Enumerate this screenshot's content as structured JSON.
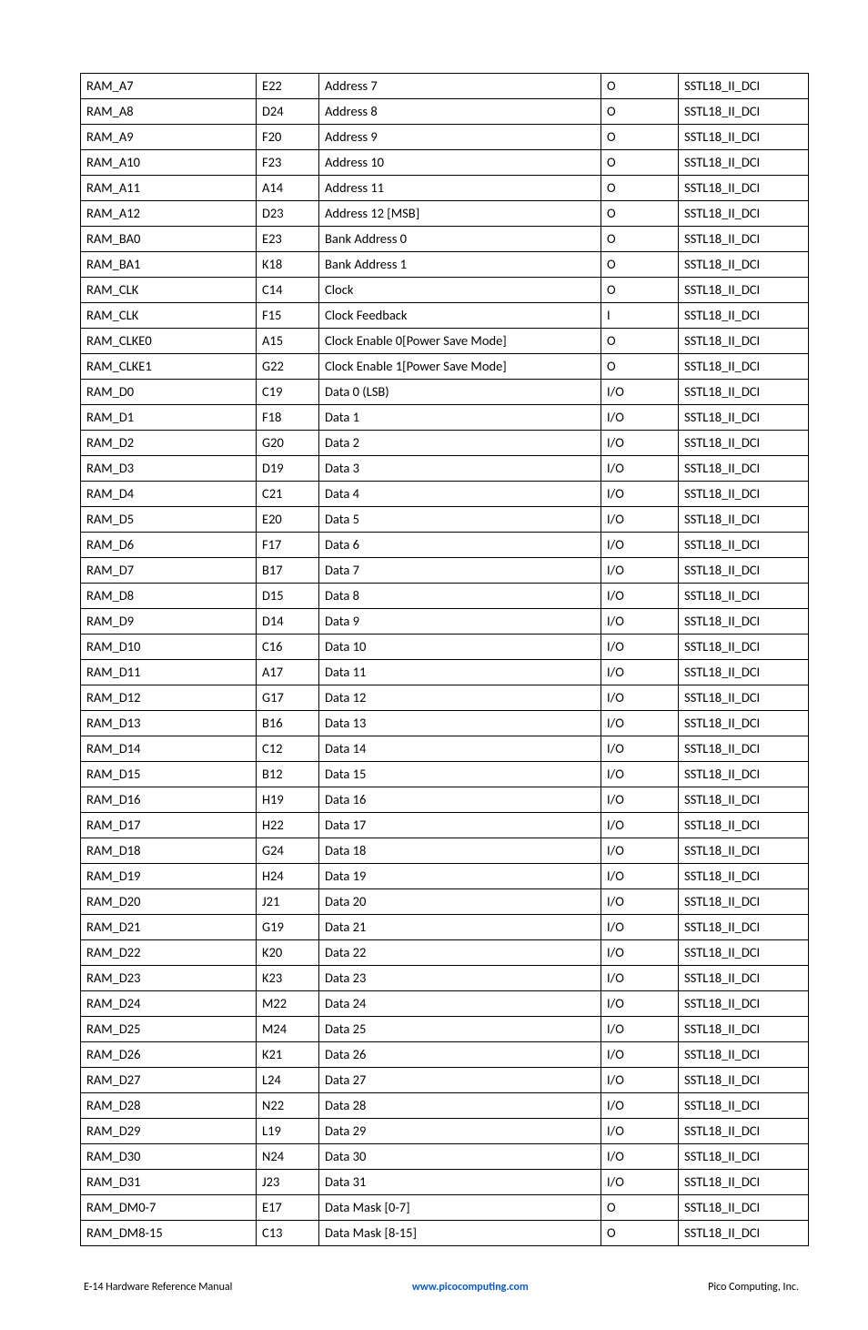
{
  "table": {
    "rows": [
      {
        "name": "RAM_A7",
        "pin": "E22",
        "desc": "Address 7",
        "dir": "O",
        "std": "SSTL18_II_DCI"
      },
      {
        "name": "RAM_A8",
        "pin": "D24",
        "desc": "Address 8",
        "dir": "O",
        "std": "SSTL18_II_DCI"
      },
      {
        "name": "RAM_A9",
        "pin": "F20",
        "desc": "Address 9",
        "dir": "O",
        "std": "SSTL18_II_DCI"
      },
      {
        "name": "RAM_A10",
        "pin": "F23",
        "desc": "Address 10",
        "dir": "O",
        "std": "SSTL18_II_DCI"
      },
      {
        "name": "RAM_A11",
        "pin": "A14",
        "desc": "Address 11",
        "dir": "O",
        "std": "SSTL18_II_DCI"
      },
      {
        "name": "RAM_A12",
        "pin": "D23",
        "desc": "Address 12 [MSB]",
        "dir": "O",
        "std": "SSTL18_II_DCI"
      },
      {
        "name": "RAM_BA0",
        "pin": "E23",
        "desc": "Bank Address 0",
        "dir": "O",
        "std": "SSTL18_II_DCI"
      },
      {
        "name": "RAM_BA1",
        "pin": "K18",
        "desc": "Bank Address 1",
        "dir": "O",
        "std": "SSTL18_II_DCI"
      },
      {
        "name": "RAM_CLK",
        "pin": "C14",
        "desc": "Clock",
        "dir": "O",
        "std": "SSTL18_II_DCI"
      },
      {
        "name": "RAM_CLK",
        "pin": "F15",
        "desc": "Clock Feedback",
        "dir": "I",
        "std": "SSTL18_II_DCI"
      },
      {
        "name": "RAM_CLKE0",
        "pin": "A15",
        "desc": "Clock Enable 0[Power Save Mode]",
        "dir": "O",
        "std": "SSTL18_II_DCI"
      },
      {
        "name": "RAM_CLKE1",
        "pin": "G22",
        "desc": "Clock Enable 1[Power Save Mode]",
        "dir": "O",
        "std": "SSTL18_II_DCI"
      },
      {
        "name": "RAM_D0",
        "pin": "C19",
        "desc": "Data 0 (LSB)",
        "dir": "I/O",
        "std": "SSTL18_II_DCI"
      },
      {
        "name": "RAM_D1",
        "pin": "F18",
        "desc": "Data 1",
        "dir": "I/O",
        "std": "SSTL18_II_DCI"
      },
      {
        "name": "RAM_D2",
        "pin": "G20",
        "desc": "Data 2",
        "dir": "I/O",
        "std": "SSTL18_II_DCI"
      },
      {
        "name": "RAM_D3",
        "pin": "D19",
        "desc": "Data 3",
        "dir": "I/O",
        "std": "SSTL18_II_DCI"
      },
      {
        "name": "RAM_D4",
        "pin": "C21",
        "desc": "Data 4",
        "dir": "I/O",
        "std": "SSTL18_II_DCI"
      },
      {
        "name": "RAM_D5",
        "pin": "E20",
        "desc": "Data 5",
        "dir": "I/O",
        "std": "SSTL18_II_DCI"
      },
      {
        "name": "RAM_D6",
        "pin": "F17",
        "desc": "Data 6",
        "dir": "I/O",
        "std": "SSTL18_II_DCI"
      },
      {
        "name": "RAM_D7",
        "pin": "B17",
        "desc": "Data 7",
        "dir": "I/O",
        "std": "SSTL18_II_DCI"
      },
      {
        "name": "RAM_D8",
        "pin": "D15",
        "desc": "Data 8",
        "dir": "I/O",
        "std": "SSTL18_II_DCI"
      },
      {
        "name": "RAM_D9",
        "pin": "D14",
        "desc": "Data 9",
        "dir": "I/O",
        "std": "SSTL18_II_DCI"
      },
      {
        "name": "RAM_D10",
        "pin": "C16",
        "desc": "Data 10",
        "dir": "I/O",
        "std": "SSTL18_II_DCI"
      },
      {
        "name": "RAM_D11",
        "pin": "A17",
        "desc": "Data 11",
        "dir": "I/O",
        "std": "SSTL18_II_DCI"
      },
      {
        "name": "RAM_D12",
        "pin": "G17",
        "desc": "Data 12",
        "dir": "I/O",
        "std": "SSTL18_II_DCI"
      },
      {
        "name": "RAM_D13",
        "pin": "B16",
        "desc": "Data 13",
        "dir": "I/O",
        "std": "SSTL18_II_DCI"
      },
      {
        "name": "RAM_D14",
        "pin": "C12",
        "desc": "Data 14",
        "dir": "I/O",
        "std": "SSTL18_II_DCI"
      },
      {
        "name": "RAM_D15",
        "pin": "B12",
        "desc": "Data 15",
        "dir": "I/O",
        "std": "SSTL18_II_DCI"
      },
      {
        "name": "RAM_D16",
        "pin": "H19",
        "desc": "Data 16",
        "dir": "I/O",
        "std": "SSTL18_II_DCI"
      },
      {
        "name": "RAM_D17",
        "pin": "H22",
        "desc": "Data 17",
        "dir": "I/O",
        "std": "SSTL18_II_DCI"
      },
      {
        "name": "RAM_D18",
        "pin": "G24",
        "desc": "Data 18",
        "dir": "I/O",
        "std": "SSTL18_II_DCI"
      },
      {
        "name": "RAM_D19",
        "pin": "H24",
        "desc": "Data 19",
        "dir": "I/O",
        "std": "SSTL18_II_DCI"
      },
      {
        "name": "RAM_D20",
        "pin": "J21",
        "desc": "Data 20",
        "dir": "I/O",
        "std": "SSTL18_II_DCI"
      },
      {
        "name": "RAM_D21",
        "pin": "G19",
        "desc": "Data 21",
        "dir": "I/O",
        "std": "SSTL18_II_DCI"
      },
      {
        "name": "RAM_D22",
        "pin": "K20",
        "desc": "Data 22",
        "dir": "I/O",
        "std": "SSTL18_II_DCI"
      },
      {
        "name": "RAM_D23",
        "pin": "K23",
        "desc": "Data 23",
        "dir": "I/O",
        "std": "SSTL18_II_DCI"
      },
      {
        "name": "RAM_D24",
        "pin": "M22",
        "desc": "Data 24",
        "dir": "I/O",
        "std": "SSTL18_II_DCI"
      },
      {
        "name": "RAM_D25",
        "pin": "M24",
        "desc": "Data 25",
        "dir": "I/O",
        "std": "SSTL18_II_DCI"
      },
      {
        "name": "RAM_D26",
        "pin": "K21",
        "desc": "Data 26",
        "dir": "I/O",
        "std": "SSTL18_II_DCI"
      },
      {
        "name": "RAM_D27",
        "pin": "L24",
        "desc": "Data 27",
        "dir": "I/O",
        "std": "SSTL18_II_DCI"
      },
      {
        "name": "RAM_D28",
        "pin": "N22",
        "desc": "Data 28",
        "dir": "I/O",
        "std": "SSTL18_II_DCI"
      },
      {
        "name": "RAM_D29",
        "pin": "L19",
        "desc": "Data 29",
        "dir": "I/O",
        "std": "SSTL18_II_DCI"
      },
      {
        "name": "RAM_D30",
        "pin": "N24",
        "desc": "Data 30",
        "dir": "I/O",
        "std": "SSTL18_II_DCI"
      },
      {
        "name": "RAM_D31",
        "pin": "J23",
        "desc": "Data 31",
        "dir": "I/O",
        "std": "SSTL18_II_DCI"
      },
      {
        "name": "RAM_DM0-7",
        "pin": "E17",
        "desc": "Data Mask [0-7]",
        "dir": "O",
        "std": "SSTL18_II_DCI"
      },
      {
        "name": "RAM_DM8-15",
        "pin": "C13",
        "desc": "Data Mask [8-15]",
        "dir": "O",
        "std": "SSTL18_II_DCI"
      }
    ]
  },
  "footer": {
    "left": "E-14 Hardware Reference Manual",
    "center": "www.picocomputing.com",
    "right": "Pico Computing, Inc."
  }
}
